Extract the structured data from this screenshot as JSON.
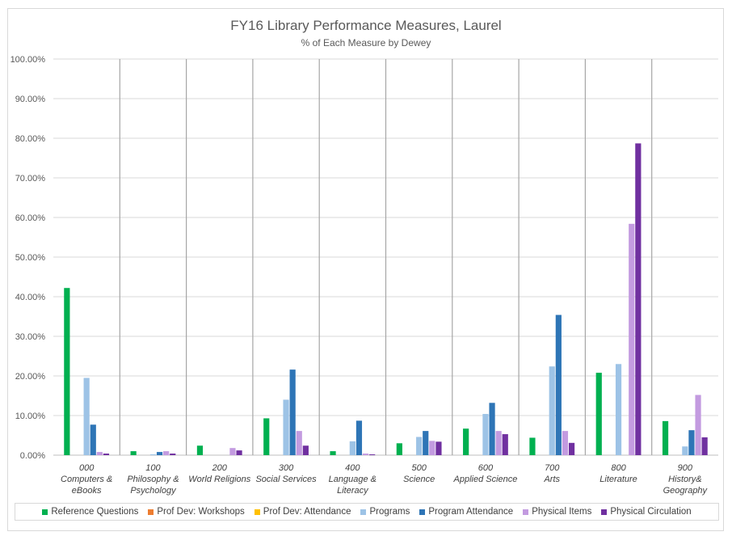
{
  "chart_data": {
    "type": "bar",
    "title": "FY16 Library Performance Measures, Laurel",
    "subtitle": "% of Each Measure by Dewey",
    "ylim": [
      0,
      100
    ],
    "y_ticks": [
      "0.00%",
      "10.00%",
      "20.00%",
      "30.00%",
      "40.00%",
      "50.00%",
      "60.00%",
      "70.00%",
      "80.00%",
      "90.00%",
      "100.00%"
    ],
    "categories": [
      {
        "code": "000",
        "name": "Computers & eBooks",
        "lines": [
          "000",
          "Computers &",
          "eBooks"
        ]
      },
      {
        "code": "100",
        "name": "Philosophy & Psychology",
        "lines": [
          "100",
          "Philosophy &",
          "Psychology"
        ]
      },
      {
        "code": "200",
        "name": "World Religions",
        "lines": [
          "200",
          "World Religions"
        ]
      },
      {
        "code": "300",
        "name": "Social Services",
        "lines": [
          "300",
          "Social Services"
        ]
      },
      {
        "code": "400",
        "name": "Language & Literacy",
        "lines": [
          "400",
          "Language &",
          "Literacy"
        ]
      },
      {
        "code": "500",
        "name": "Science",
        "lines": [
          "500",
          "Science"
        ]
      },
      {
        "code": "600",
        "name": "Applied Science",
        "lines": [
          "600",
          "Applied Science"
        ]
      },
      {
        "code": "700",
        "name": "Arts",
        "lines": [
          "700",
          "Arts"
        ]
      },
      {
        "code": "800",
        "name": "Literature",
        "lines": [
          "800",
          "Literature"
        ]
      },
      {
        "code": "900",
        "name": "History& Geography",
        "lines": [
          "900",
          "History&",
          "Geography"
        ]
      }
    ],
    "series": [
      {
        "name": "Reference Questions",
        "color": "#00b050",
        "values": [
          42.2,
          1.0,
          2.4,
          9.3,
          1.0,
          3.0,
          6.7,
          4.4,
          20.8,
          8.6
        ]
      },
      {
        "name": "Prof Dev: Workshops",
        "color": "#ed7d31",
        "values": [
          0,
          0,
          0,
          0,
          0,
          0,
          0,
          0,
          0,
          0
        ]
      },
      {
        "name": "Prof Dev: Attendance",
        "color": "#ffc000",
        "values": [
          0,
          0,
          0,
          0,
          0,
          0,
          0,
          0,
          0,
          0
        ]
      },
      {
        "name": "Programs",
        "color": "#9dc3e6",
        "values": [
          19.5,
          0.2,
          0,
          14.0,
          3.5,
          4.6,
          10.4,
          22.4,
          23.0,
          2.2
        ]
      },
      {
        "name": "Program Attendance",
        "color": "#2e75b6",
        "values": [
          7.7,
          0.8,
          0,
          21.6,
          8.7,
          6.1,
          13.2,
          35.4,
          0,
          6.3
        ]
      },
      {
        "name": "Physical Items",
        "color": "#c39be0",
        "values": [
          0.8,
          1.0,
          1.8,
          6.1,
          0.4,
          3.6,
          6.1,
          6.1,
          58.4,
          15.2
        ]
      },
      {
        "name": "Physical Circulation",
        "color": "#7030a0",
        "values": [
          0.4,
          0.4,
          1.2,
          2.4,
          0.2,
          3.4,
          5.3,
          3.1,
          78.7,
          4.5
        ]
      }
    ],
    "grid": true,
    "legend_position": "bottom"
  }
}
